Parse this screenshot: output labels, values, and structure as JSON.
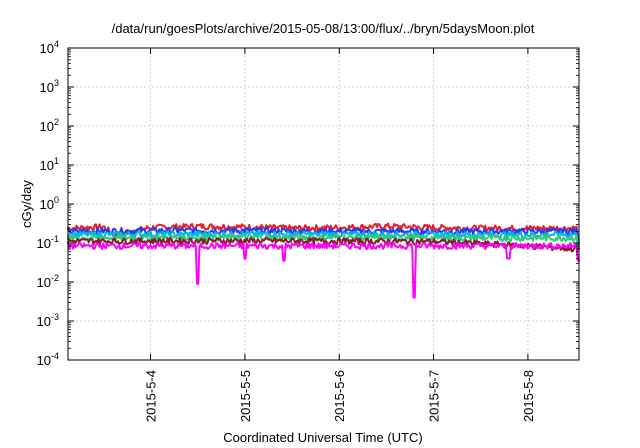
{
  "chart_data": {
    "type": "line",
    "title": "/data/run/goesPlots/archive/2015-05-08/13:00/flux/../bryn/5daysMoon.plot",
    "xlabel": "Coordinated Universal Time (UTC)",
    "ylabel": "cGy/day",
    "yscale": "log",
    "ylim": [
      0.0001,
      10000
    ],
    "xlim": [
      "2015-05-03 03:00",
      "2015-05-08 13:00"
    ],
    "grid": true,
    "x_ticks": [
      "2015-5-4",
      "2015-5-5",
      "2015-5-6",
      "2015-5-7",
      "2015-5-8"
    ],
    "y_ticks": [
      {
        "value": 0.0001,
        "base": "10",
        "exp": "-4"
      },
      {
        "value": 0.001,
        "base": "10",
        "exp": "-3"
      },
      {
        "value": 0.01,
        "base": "10",
        "exp": "-2"
      },
      {
        "value": 0.1,
        "base": "10",
        "exp": "-1"
      },
      {
        "value": 1,
        "base": "10",
        "exp": "0"
      },
      {
        "value": 10,
        "base": "10",
        "exp": "1"
      },
      {
        "value": 100,
        "base": "10",
        "exp": "2"
      },
      {
        "value": 1000,
        "base": "10",
        "exp": "3"
      },
      {
        "value": 10000,
        "base": "10",
        "exp": "4"
      }
    ],
    "series": [
      {
        "color": "#ee1c25",
        "base": 0.24,
        "values": [
          {
            "x": "2015-05-03 03:00",
            "y": 0.24
          },
          {
            "x": "2015-05-03 12:00",
            "y": 0.26
          },
          {
            "x": "2015-05-03 15:00",
            "y": 0.15
          },
          {
            "x": "2015-05-04 00:00",
            "y": 0.25
          },
          {
            "x": "2015-05-04 12:00",
            "y": 0.27
          },
          {
            "x": "2015-05-05 00:00",
            "y": 0.26
          },
          {
            "x": "2015-05-05 12:00",
            "y": 0.24
          },
          {
            "x": "2015-05-06 00:00",
            "y": 0.25
          },
          {
            "x": "2015-05-06 12:00",
            "y": 0.27
          },
          {
            "x": "2015-05-07 00:00",
            "y": 0.25
          },
          {
            "x": "2015-05-07 12:00",
            "y": 0.24
          },
          {
            "x": "2015-05-08 00:00",
            "y": 0.24
          },
          {
            "x": "2015-05-08 13:00",
            "y": 0.12
          }
        ]
      },
      {
        "color": "#1f3dff",
        "base": 0.2,
        "values": [
          {
            "x": "2015-05-03 03:00",
            "y": 0.2
          },
          {
            "x": "2015-05-04 00:00",
            "y": 0.21
          },
          {
            "x": "2015-05-05 00:00",
            "y": 0.21
          },
          {
            "x": "2015-05-06 00:00",
            "y": 0.2
          },
          {
            "x": "2015-05-07 00:00",
            "y": 0.2
          },
          {
            "x": "2015-05-08 00:00",
            "y": 0.2
          },
          {
            "x": "2015-05-08 13:00",
            "y": 0.1
          }
        ]
      },
      {
        "color": "#00b7e0",
        "base": 0.165,
        "values": [
          {
            "x": "2015-05-03 03:00",
            "y": 0.165
          },
          {
            "x": "2015-05-05 00:00",
            "y": 0.17
          },
          {
            "x": "2015-05-07 00:00",
            "y": 0.165
          },
          {
            "x": "2015-05-08 13:00",
            "y": 0.09
          }
        ]
      },
      {
        "color": "#2ecc71",
        "base": 0.135,
        "values": [
          {
            "x": "2015-05-03 03:00",
            "y": 0.135
          },
          {
            "x": "2015-05-05 00:00",
            "y": 0.14
          },
          {
            "x": "2015-05-07 00:00",
            "y": 0.135
          },
          {
            "x": "2015-05-08 13:00",
            "y": 0.08
          }
        ]
      },
      {
        "color": "#8b1a2b",
        "base": 0.112,
        "values": [
          {
            "x": "2015-05-03 03:00",
            "y": 0.112
          },
          {
            "x": "2015-05-05 00:00",
            "y": 0.115
          },
          {
            "x": "2015-05-07 00:00",
            "y": 0.11
          },
          {
            "x": "2015-05-08 13:00",
            "y": 0.07
          }
        ]
      },
      {
        "color": "#ff00ff",
        "base": 0.085,
        "values": [
          {
            "x": "2015-05-03 03:00",
            "y": 0.085
          },
          {
            "x": "2015-05-04 12:00",
            "y": 0.009
          },
          {
            "x": "2015-05-05 00:00",
            "y": 0.04
          },
          {
            "x": "2015-05-05 10:00",
            "y": 0.035
          },
          {
            "x": "2015-05-06 19:00",
            "y": 0.004
          },
          {
            "x": "2015-05-07 19:00",
            "y": 0.04
          },
          {
            "x": "2015-05-08 13:00",
            "y": 0.035
          }
        ]
      }
    ]
  }
}
